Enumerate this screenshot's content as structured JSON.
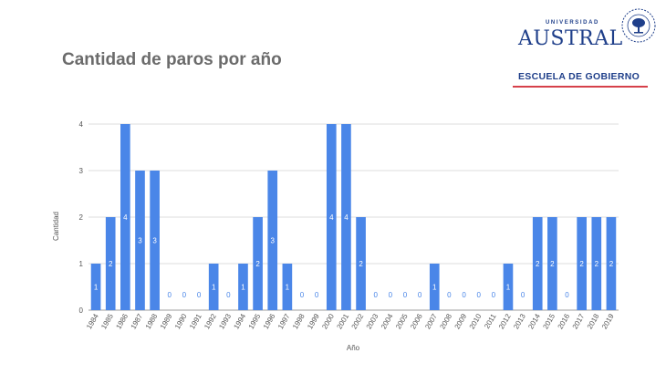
{
  "title": "Cantidad de paros por año",
  "logo": {
    "university_small": "UNIVERSIDAD",
    "university_name": "AUSTRAL",
    "school": "ESCUELA DE GOBIERNO",
    "brand_color": "#1f3f8a",
    "rule_color": "#d6404a"
  },
  "chart_data": {
    "type": "bar",
    "xlabel": "Año",
    "ylabel": "Cantidad",
    "ylim": [
      0,
      4
    ],
    "yticks": [
      0,
      1,
      2,
      3,
      4
    ],
    "grid": true,
    "bar_color": "#4a86e8",
    "categories": [
      "1984",
      "1985",
      "1986",
      "1987",
      "1988",
      "1989",
      "1990",
      "1991",
      "1992",
      "1993",
      "1994",
      "1995",
      "1996",
      "1997",
      "1998",
      "1999",
      "2000",
      "2001",
      "2002",
      "2003",
      "2004",
      "2005",
      "2006",
      "2007",
      "2008",
      "2009",
      "2010",
      "2011",
      "2012",
      "2013",
      "2014",
      "2015",
      "2016",
      "2017",
      "2018",
      "2019"
    ],
    "values": [
      1,
      2,
      4,
      3,
      3,
      0,
      0,
      0,
      1,
      0,
      1,
      2,
      3,
      1,
      0,
      0,
      4,
      4,
      2,
      0,
      0,
      0,
      0,
      1,
      0,
      0,
      0,
      0,
      1,
      0,
      2,
      2,
      0,
      2,
      2,
      2
    ]
  }
}
